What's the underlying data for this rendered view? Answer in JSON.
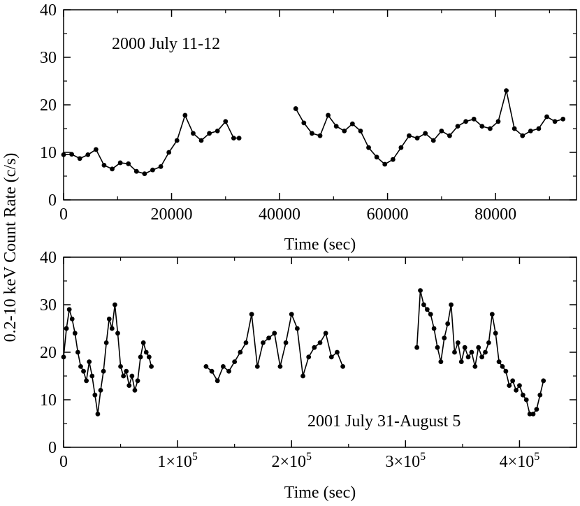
{
  "figure": {
    "shared_ylabel": "0.2-10 keV Count Rate (c/s)"
  },
  "chart_data": [
    {
      "type": "line",
      "title": "2000 July 11-12",
      "xlabel": "Time (sec)",
      "ylabel": "0.2-10 keV Count Rate (c/s)",
      "xlim": [
        0,
        95000
      ],
      "ylim": [
        0,
        40
      ],
      "xticks": [
        0,
        20000,
        40000,
        60000,
        80000
      ],
      "xtick_labels": [
        "0",
        "20000",
        "40000",
        "60000",
        "80000"
      ],
      "yticks": [
        0,
        10,
        20,
        30,
        40
      ],
      "ytick_labels": [
        "0",
        "10",
        "20",
        "30",
        "40"
      ],
      "marker": "circle",
      "segments": [
        {
          "x": [
            0,
            1500,
            3000,
            4500,
            6000,
            7500,
            9000,
            10500,
            12000,
            13500,
            15000,
            16500,
            18000,
            19500,
            21000,
            22500,
            24000,
            25500,
            27000,
            28500,
            30000,
            31500,
            32500
          ],
          "y": [
            9.5,
            9.6,
            8.7,
            9.5,
            10.6,
            7.3,
            6.5,
            7.8,
            7.6,
            6.0,
            5.5,
            6.3,
            7.0,
            10.0,
            12.5,
            17.8,
            14.0,
            12.5,
            14.0,
            14.5,
            16.5,
            13.0,
            13.0
          ]
        },
        {
          "x": [
            43000,
            44500,
            46000,
            47500,
            49000,
            50500,
            52000,
            53500,
            55000,
            56500,
            58000,
            59500,
            61000,
            62500,
            64000,
            65500,
            67000,
            68500,
            70000,
            71500,
            73000,
            74500,
            76000,
            77500,
            79000,
            80500,
            82000,
            83500,
            85000,
            86500,
            88000,
            89500,
            91000,
            92500
          ],
          "y": [
            19.2,
            16.2,
            14.0,
            13.5,
            17.8,
            15.5,
            14.5,
            16.0,
            14.5,
            11.0,
            9.0,
            7.5,
            8.5,
            11.0,
            13.5,
            13.0,
            14.0,
            12.5,
            14.5,
            13.5,
            15.5,
            16.5,
            17.0,
            15.5,
            15.0,
            16.5,
            23.0,
            15.0,
            13.5,
            14.5,
            15.0,
            17.5,
            16.5,
            17.0
          ]
        }
      ]
    },
    {
      "type": "line",
      "title": "2001 July 31-August 5",
      "xlabel": "Time (sec)",
      "ylabel": "0.2-10 keV Count Rate (c/s)",
      "xlim": [
        0,
        450000
      ],
      "ylim": [
        0,
        40
      ],
      "xticks": [
        0,
        100000,
        200000,
        300000,
        400000
      ],
      "xtick_labels": [
        "0",
        "1×10",
        "2×10",
        "3×10",
        "4×10"
      ],
      "xtick_exponent": "5",
      "yticks": [
        0,
        10,
        20,
        30,
        40
      ],
      "ytick_labels": [
        "0",
        "10",
        "20",
        "30",
        "40"
      ],
      "marker": "circle",
      "segments": [
        {
          "x": [
            0,
            2500,
            5000,
            7500,
            10000,
            12500,
            15000,
            17500,
            20000,
            22500,
            25000,
            27500,
            30000,
            32500,
            35000,
            37500,
            40000,
            42500,
            45000,
            47500,
            50000,
            52500,
            55000,
            57500,
            60000,
            62500,
            65000,
            67500,
            70000,
            72500,
            75000,
            77000
          ],
          "y": [
            19,
            25,
            29,
            27,
            24,
            20,
            17,
            16,
            14,
            18,
            15,
            11,
            7,
            12,
            16,
            22,
            27,
            25,
            30,
            24,
            17,
            15,
            16,
            13,
            15,
            12,
            14,
            19,
            22,
            20,
            19,
            17
          ]
        },
        {
          "x": [
            125000,
            130000,
            135000,
            140000,
            145000,
            150000,
            155000,
            160000,
            165000,
            170000,
            175000,
            180000,
            185000,
            190000,
            195000,
            200000,
            205000,
            210000,
            215000,
            220000,
            225000,
            230000,
            235000,
            240000,
            245000
          ],
          "y": [
            17,
            16,
            14,
            17,
            16,
            18,
            20,
            22,
            28,
            17,
            22,
            23,
            24,
            17,
            22,
            28,
            25,
            15,
            19,
            21,
            22,
            24,
            19,
            20,
            17
          ]
        },
        {
          "x": [
            310000,
            313000,
            316000,
            319000,
            322000,
            325000,
            328000,
            331000,
            334000,
            337000,
            340000,
            343000,
            346000,
            349000,
            352000,
            355000,
            358000,
            361000,
            364000,
            367000,
            370000,
            373000,
            376000,
            379000,
            382000,
            385000,
            388000,
            391000,
            394000,
            397000,
            400000,
            403000,
            406000,
            409000,
            412000,
            415000,
            418000,
            421000
          ],
          "y": [
            21,
            33,
            30,
            29,
            28,
            25,
            21,
            18,
            23,
            26,
            30,
            20,
            22,
            18,
            21,
            19,
            20,
            17,
            21,
            19,
            20,
            22,
            28,
            24,
            18,
            17,
            16,
            13,
            14,
            12,
            13,
            11,
            10,
            7,
            7,
            8,
            11,
            14
          ]
        }
      ]
    }
  ],
  "annotations": {
    "top_label": "2000 July 11-12",
    "bottom_label": "2001 July 31-August 5"
  }
}
